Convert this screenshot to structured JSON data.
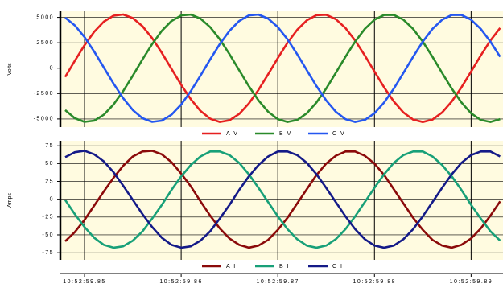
{
  "chart_data": [
    {
      "type": "line",
      "ylabel": "Volts",
      "background": "#fffbe0",
      "grid": true,
      "xlim": [
        59.8475,
        59.8933
      ],
      "xticks": [
        59.85,
        59.86,
        59.87,
        59.88,
        59.89
      ],
      "ylim": [
        -5800,
        5600
      ],
      "yticks": [
        5000,
        2500,
        0,
        -2500,
        -5000
      ],
      "x": [
        59.848,
        59.849,
        59.85,
        59.851,
        59.852,
        59.853,
        59.854,
        59.855,
        59.856,
        59.857,
        59.858,
        59.859,
        59.86,
        59.861,
        59.862,
        59.863,
        59.864,
        59.865,
        59.866,
        59.867,
        59.868,
        59.869,
        59.87,
        59.871,
        59.872,
        59.873,
        59.874,
        59.875,
        59.876,
        59.877,
        59.878,
        59.879,
        59.88,
        59.881,
        59.882,
        59.883,
        59.884,
        59.885,
        59.886,
        59.887,
        59.888,
        59.889,
        59.89,
        59.891,
        59.892,
        59.893
      ],
      "series": [
        {
          "name": "A V",
          "color": "#e62020",
          "values": [
            -862,
            730,
            2257,
            3579,
            4579,
            5165,
            5285,
            4928,
            4126,
            2953,
            1511,
            -67,
            -1638,
            -3061,
            -4209,
            -4976,
            -5293,
            -5134,
            -4511,
            -3479,
            -2135,
            -598,
            993,
            2495,
            3771,
            4707,
            5218,
            5258,
            4824,
            3954,
            2727,
            1253,
            -333,
            -1889,
            -3275,
            -4364,
            -5061,
            -5300,
            -5061,
            -4364,
            -3275,
            -1889,
            -333,
            1253,
            2727,
            3954
          ]
        },
        {
          "name": "B V",
          "color": "#2a8a2a",
          "values": [
            -4126,
            -4928,
            -5285,
            -5165,
            -4579,
            -3579,
            -2257,
            -730,
            862,
            2377,
            3677,
            4644,
            5193,
            5274,
            4877,
            4040,
            2840,
            1382,
            -200,
            -1764,
            -3170,
            -4288,
            -5020,
            -5298,
            -5099,
            -4439,
            -3378,
            -2012,
            -465,
            1124,
            2611,
            3864,
            4767,
            5240,
            5240,
            4767,
            3864,
            2611,
            1124,
            -465,
            -2012,
            -3378,
            -4439,
            -5099,
            -5298,
            -5020
          ]
        },
        {
          "name": "C V",
          "color": "#2457f0",
          "values": [
            4975,
            4208,
            3061,
            1638,
            67,
            -1511,
            -2953,
            -4126,
            -4928,
            -5285,
            -5165,
            -4579,
            -3579,
            -2257,
            -730,
            862,
            2377,
            3677,
            4644,
            5193,
            5274,
            4877,
            4040,
            2840,
            1382,
            -200,
            -1764,
            -3170,
            -4288,
            -5020,
            -5298,
            -5099,
            -4439,
            -3378,
            -2012,
            -465,
            1124,
            2611,
            3864,
            4767,
            5240,
            5240,
            4767,
            3864,
            2611,
            1124
          ]
        }
      ]
    },
    {
      "type": "line",
      "ylabel": "Amps",
      "background": "#fffbe0",
      "grid": true,
      "xlim": [
        59.8475,
        59.8933
      ],
      "xticks": [
        {
          "value": 59.85,
          "label": "10:52:59.85"
        },
        {
          "value": 59.86,
          "label": "10:52:59.86"
        },
        {
          "value": 59.87,
          "label": "10:52:59.87"
        },
        {
          "value": 59.88,
          "label": "10:52:59.88"
        },
        {
          "value": 59.89,
          "label": "10:52:59.89"
        }
      ],
      "ylim": [
        -85,
        82
      ],
      "yticks": [
        75,
        50,
        25,
        0,
        -25,
        -50,
        -75
      ],
      "x": [
        59.848,
        59.849,
        59.85,
        59.851,
        59.852,
        59.853,
        59.854,
        59.855,
        59.856,
        59.857,
        59.858,
        59.859,
        59.86,
        59.861,
        59.862,
        59.863,
        59.864,
        59.865,
        59.866,
        59.867,
        59.868,
        59.869,
        59.87,
        59.871,
        59.872,
        59.873,
        59.874,
        59.875,
        59.876,
        59.877,
        59.878,
        59.879,
        59.88,
        59.881,
        59.882,
        59.883,
        59.884,
        59.885,
        59.886,
        59.887,
        59.888,
        59.889,
        59.89,
        59.891,
        59.892,
        59.893
      ],
      "series": [
        {
          "name": "A I",
          "color": "#8b0a0a",
          "values": [
            -59,
            -46,
            -29,
            -9,
            11,
            30,
            47,
            60,
            67,
            68,
            63,
            52,
            36,
            18,
            -3,
            -23,
            -41,
            -55,
            -64,
            -68,
            -65,
            -57,
            -43,
            -26,
            -6,
            14,
            34,
            50,
            61,
            67,
            67,
            61,
            50,
            34,
            14,
            -6,
            -26,
            -43,
            -57,
            -65,
            -68,
            -64,
            -55,
            -41,
            -23,
            -3
          ]
        },
        {
          "name": "B I",
          "color": "#18a078",
          "values": [
            -1,
            -21,
            -39,
            -54,
            -64,
            -68,
            -66,
            -58,
            -45,
            -27,
            -8,
            13,
            32,
            48,
            60,
            67,
            67,
            62,
            51,
            35,
            16,
            -4,
            -24,
            -42,
            -56,
            -65,
            -68,
            -65,
            -56,
            -42,
            -24,
            -4,
            16,
            35,
            51,
            62,
            67,
            67,
            60,
            48,
            32,
            13,
            -8,
            -27,
            -45,
            -58
          ]
        },
        {
          "name": "C I",
          "color": "#141a88",
          "values": [
            59,
            66,
            68,
            63,
            53,
            38,
            19,
            -1,
            -21,
            -39,
            -54,
            -64,
            -68,
            -66,
            -58,
            -45,
            -27,
            -8,
            13,
            32,
            48,
            60,
            67,
            67,
            62,
            51,
            35,
            16,
            -4,
            -24,
            -42,
            -56,
            -65,
            -68,
            -65,
            -56,
            -42,
            -24,
            -4,
            16,
            35,
            51,
            62,
            67,
            67,
            60
          ]
        }
      ]
    }
  ]
}
